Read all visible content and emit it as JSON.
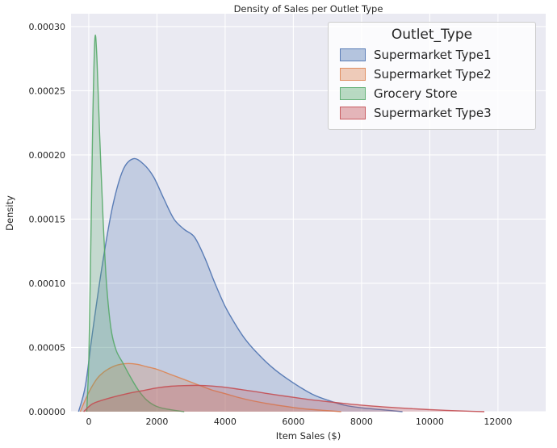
{
  "chart_data": {
    "type": "area",
    "kind": "kde-density",
    "title": "Density of Sales per Outlet Type",
    "xlabel": "Item Sales ($)",
    "ylabel": "Density",
    "xlim": [
      -520,
      13400
    ],
    "ylim": [
      0,
      0.00031
    ],
    "xticks": [
      0,
      2000,
      4000,
      6000,
      8000,
      10000,
      12000
    ],
    "yticks": [
      0,
      5e-05,
      0.0001,
      0.00015,
      0.0002,
      0.00025,
      0.0003
    ],
    "ytick_decimals": 5,
    "grid": true,
    "background": "#eaeaf2",
    "grid_color": "#ffffff",
    "text_color": "#262626",
    "legend": {
      "title": "Outlet_Type",
      "position": "upper right"
    },
    "series": [
      {
        "name": "Supermarket Type1",
        "color": "#4C72B0",
        "fill_alpha": 0.25,
        "points": [
          [
            -300,
            0
          ],
          [
            -100,
            2e-05
          ],
          [
            100,
            6e-05
          ],
          [
            400,
            0.000115
          ],
          [
            700,
            0.00016
          ],
          [
            1000,
            0.000188
          ],
          [
            1300,
            0.000197
          ],
          [
            1600,
            0.000193
          ],
          [
            1900,
            0.000183
          ],
          [
            2200,
            0.000166
          ],
          [
            2500,
            0.00015
          ],
          [
            2800,
            0.000142
          ],
          [
            3100,
            0.000136
          ],
          [
            3400,
            0.00012
          ],
          [
            3700,
            0.0001
          ],
          [
            4000,
            8.2e-05
          ],
          [
            4300,
            6.8e-05
          ],
          [
            4600,
            5.6e-05
          ],
          [
            5000,
            4.4e-05
          ],
          [
            5400,
            3.4e-05
          ],
          [
            5800,
            2.6e-05
          ],
          [
            6200,
            1.9e-05
          ],
          [
            6600,
            1.3e-05
          ],
          [
            7000,
            9e-06
          ],
          [
            7500,
            5e-06
          ],
          [
            8000,
            3e-06
          ],
          [
            8600,
            1.5e-06
          ],
          [
            9200,
            0
          ]
        ]
      },
      {
        "name": "Supermarket Type2",
        "color": "#DD8452",
        "fill_alpha": 0.25,
        "points": [
          [
            -250,
            0
          ],
          [
            0,
            1.5e-05
          ],
          [
            250,
            2.6e-05
          ],
          [
            500,
            3.2e-05
          ],
          [
            800,
            3.6e-05
          ],
          [
            1100,
            3.75e-05
          ],
          [
            1400,
            3.7e-05
          ],
          [
            1700,
            3.5e-05
          ],
          [
            2000,
            3.3e-05
          ],
          [
            2400,
            2.9e-05
          ],
          [
            2800,
            2.5e-05
          ],
          [
            3200,
            2.1e-05
          ],
          [
            3600,
            1.7e-05
          ],
          [
            4000,
            1.4e-05
          ],
          [
            4400,
            1.1e-05
          ],
          [
            4800,
            8.5e-06
          ],
          [
            5200,
            6.5e-06
          ],
          [
            5600,
            4.8e-06
          ],
          [
            6000,
            3.3e-06
          ],
          [
            6400,
            2e-06
          ],
          [
            6900,
            1e-06
          ],
          [
            7400,
            0
          ]
        ]
      },
      {
        "name": "Grocery Store",
        "color": "#55A868",
        "fill_alpha": 0.25,
        "points": [
          [
            -60,
            0
          ],
          [
            0,
            4e-05
          ],
          [
            60,
            0.00013
          ],
          [
            120,
            0.00023
          ],
          [
            180,
            0.000291
          ],
          [
            240,
            0.000275
          ],
          [
            320,
            0.000215
          ],
          [
            420,
            0.00015
          ],
          [
            520,
            0.0001
          ],
          [
            650,
            6.5e-05
          ],
          [
            800,
            4.8e-05
          ],
          [
            1000,
            3.8e-05
          ],
          [
            1200,
            2.8e-05
          ],
          [
            1450,
            1.7e-05
          ],
          [
            1700,
            9e-06
          ],
          [
            2000,
            4e-06
          ],
          [
            2400,
            1.5e-06
          ],
          [
            2800,
            0
          ]
        ]
      },
      {
        "name": "Supermarket Type3",
        "color": "#C44E52",
        "fill_alpha": 0.25,
        "points": [
          [
            -150,
            0
          ],
          [
            100,
            6e-06
          ],
          [
            400,
            9e-06
          ],
          [
            800,
            1.2e-05
          ],
          [
            1200,
            1.45e-05
          ],
          [
            1600,
            1.65e-05
          ],
          [
            2000,
            1.85e-05
          ],
          [
            2400,
            1.98e-05
          ],
          [
            2800,
            2.03e-05
          ],
          [
            3200,
            2.05e-05
          ],
          [
            3600,
            2e-05
          ],
          [
            4000,
            1.9e-05
          ],
          [
            4400,
            1.75e-05
          ],
          [
            4800,
            1.6e-05
          ],
          [
            5200,
            1.43e-05
          ],
          [
            5600,
            1.27e-05
          ],
          [
            6000,
            1.12e-05
          ],
          [
            6400,
            9.7e-06
          ],
          [
            6800,
            8.4e-06
          ],
          [
            7200,
            7.2e-06
          ],
          [
            7600,
            6.1e-06
          ],
          [
            8000,
            5.1e-06
          ],
          [
            8500,
            4e-06
          ],
          [
            9000,
            3.1e-06
          ],
          [
            9500,
            2.3e-06
          ],
          [
            10000,
            1.6e-06
          ],
          [
            10500,
            1e-06
          ],
          [
            11000,
            5e-07
          ],
          [
            11600,
            0
          ]
        ]
      }
    ]
  }
}
